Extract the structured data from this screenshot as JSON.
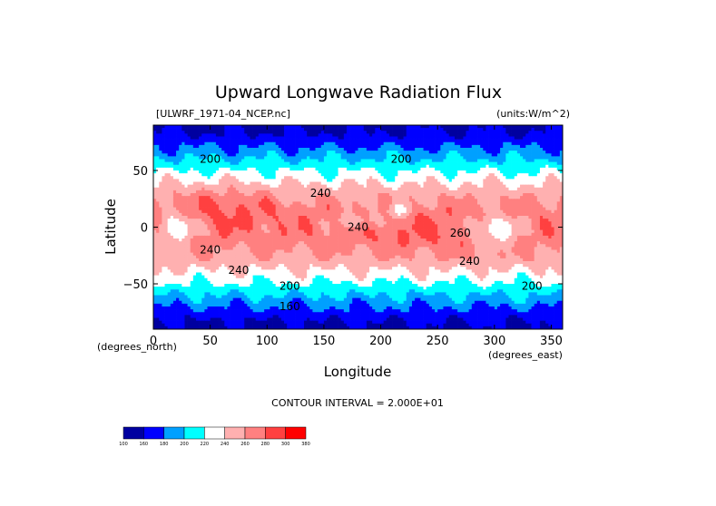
{
  "chart_data": {
    "type": "heatmap",
    "title": "Upward Longwave Radiation Flux",
    "dataset": "[ULWRF_1971-04_NCEP.nc]",
    "units": "(units:W/m^2)",
    "xlabel": "Longitude",
    "ylabel": "Latitude",
    "x_unit": "(degrees_east)",
    "y_unit": "(degrees_north)",
    "xlim": [
      0,
      360
    ],
    "ylim": [
      -90,
      90
    ],
    "x_ticks": [
      "0",
      "50",
      "100",
      "150",
      "200",
      "250",
      "300",
      "350"
    ],
    "y_ticks": [
      "50",
      "0",
      "−50"
    ],
    "contour_interval": "CONTOUR INTERVAL = 2.000E+01",
    "colorbar": {
      "levels": [
        "100",
        "160",
        "180",
        "200",
        "220",
        "240",
        "260",
        "280",
        "300",
        "380"
      ],
      "colors": [
        "#0000a0",
        "#0000ff",
        "#00a0ff",
        "#00ffff",
        "#ffffff",
        "#ffb0b0",
        "#ff8080",
        "#ff4040",
        "#ff0000"
      ]
    },
    "contour_labels": [
      {
        "text": "200",
        "x": 50,
        "y": 60
      },
      {
        "text": "200",
        "x": 218,
        "y": 60
      },
      {
        "text": "240",
        "x": 147,
        "y": 30
      },
      {
        "text": "240",
        "x": 180,
        "y": 0
      },
      {
        "text": "240",
        "x": 50,
        "y": -20
      },
      {
        "text": "240",
        "x": 278,
        "y": -30
      },
      {
        "text": "240",
        "x": 75,
        "y": -38
      },
      {
        "text": "260",
        "x": 270,
        "y": -5
      },
      {
        "text": "200",
        "x": 120,
        "y": -52
      },
      {
        "text": "200",
        "x": 333,
        "y": -52
      },
      {
        "text": "160",
        "x": 120,
        "y": -70
      }
    ]
  }
}
